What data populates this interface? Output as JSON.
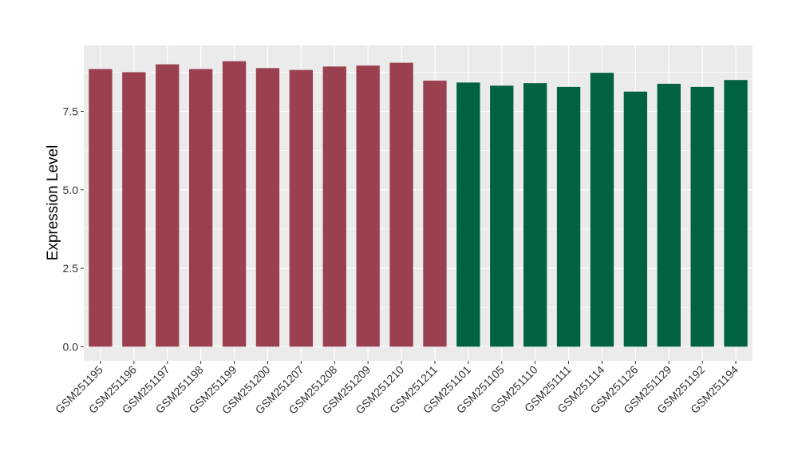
{
  "chart_data": {
    "type": "bar",
    "title": "",
    "xlabel": "",
    "ylabel": "Expression Level",
    "ylim": [
      -0.45,
      9.6
    ],
    "yticks": [
      0.0,
      2.5,
      5.0,
      7.5
    ],
    "ytick_labels": [
      "0.0",
      "2.5",
      "5.0",
      "7.5"
    ],
    "grid": true,
    "panel_background": "#EBEBEB",
    "grid_color": "#FFFFFF",
    "legend": "none",
    "categories": [
      "GSM251195",
      "GSM251196",
      "GSM251197",
      "GSM251198",
      "GSM251199",
      "GSM251200",
      "GSM251207",
      "GSM251208",
      "GSM251209",
      "GSM251210",
      "GSM251211",
      "GSM251101",
      "GSM251105",
      "GSM251110",
      "GSM251111",
      "GSM251114",
      "GSM251126",
      "GSM251129",
      "GSM251192",
      "GSM251194"
    ],
    "values": [
      8.85,
      8.75,
      9.0,
      8.85,
      9.1,
      8.88,
      8.82,
      8.93,
      8.96,
      9.05,
      8.48,
      8.42,
      8.32,
      8.4,
      8.28,
      8.73,
      8.13,
      8.38,
      8.28,
      8.5
    ],
    "colors": [
      "#9A404E",
      "#9A404E",
      "#9A404E",
      "#9A404E",
      "#9A404E",
      "#9A404E",
      "#9A404E",
      "#9A404E",
      "#9A404E",
      "#9A404E",
      "#9A404E",
      "#006241",
      "#006241",
      "#006241",
      "#006241",
      "#006241",
      "#006241",
      "#006241",
      "#006241",
      "#006241"
    ]
  }
}
